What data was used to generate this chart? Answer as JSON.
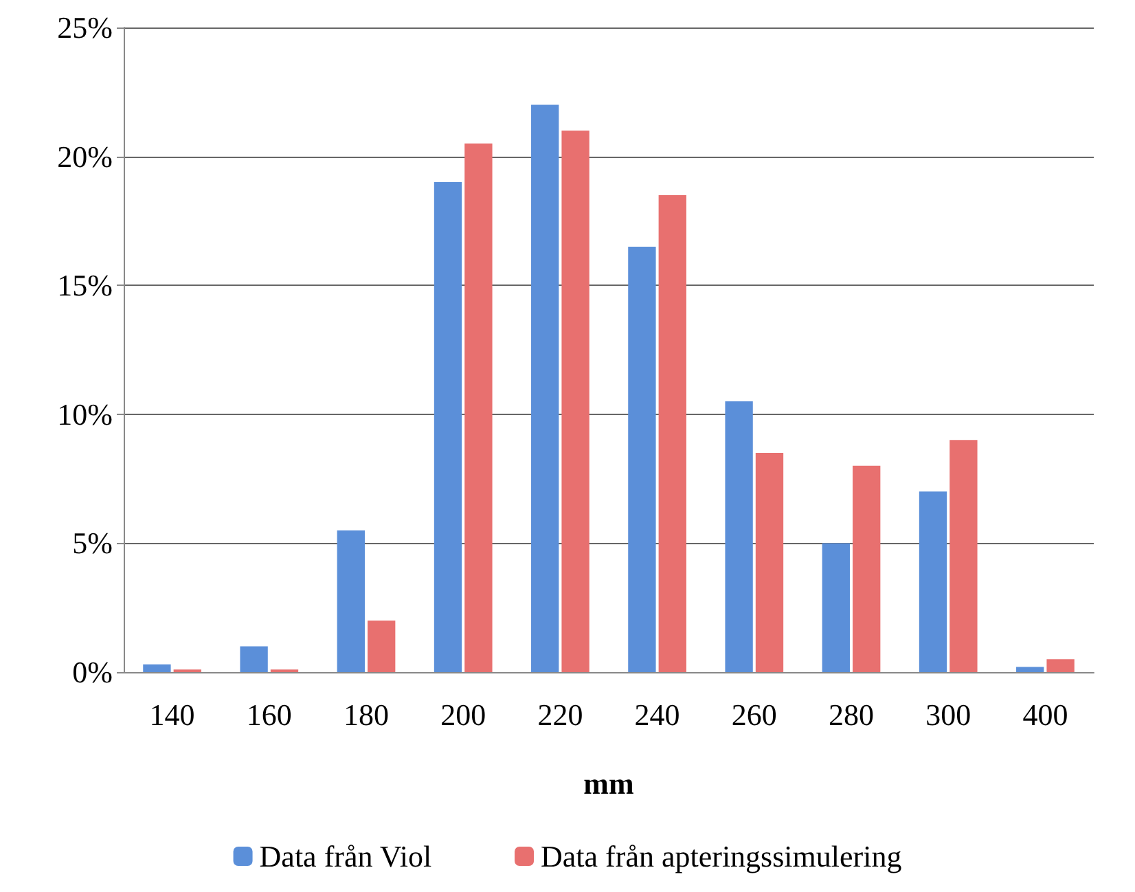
{
  "chart_data": {
    "type": "bar",
    "xlabel": "mm",
    "categories": [
      "140",
      "160",
      "180",
      "200",
      "220",
      "240",
      "260",
      "280",
      "300",
      "400"
    ],
    "series": [
      {
        "name": "Data från Viol",
        "color": "#5b8fd9",
        "values": [
          0.3,
          1,
          5.5,
          19,
          22,
          16.5,
          10.5,
          5,
          7,
          0.2
        ]
      },
      {
        "name": "Data från apteringssimulering",
        "color": "#e8706f",
        "values": [
          0.1,
          0.1,
          2,
          20.5,
          21,
          18.5,
          8.5,
          8,
          9,
          0.5
        ]
      }
    ],
    "ylim": [
      0,
      25
    ],
    "yticks": [
      {
        "value": 0,
        "label": "0%"
      },
      {
        "value": 5,
        "label": "5%"
      },
      {
        "value": 10,
        "label": "10%"
      },
      {
        "value": 15,
        "label": "15%"
      },
      {
        "value": 20,
        "label": "20%"
      },
      {
        "value": 25,
        "label": "25%"
      }
    ],
    "grid": "y",
    "legend": "bottom"
  }
}
